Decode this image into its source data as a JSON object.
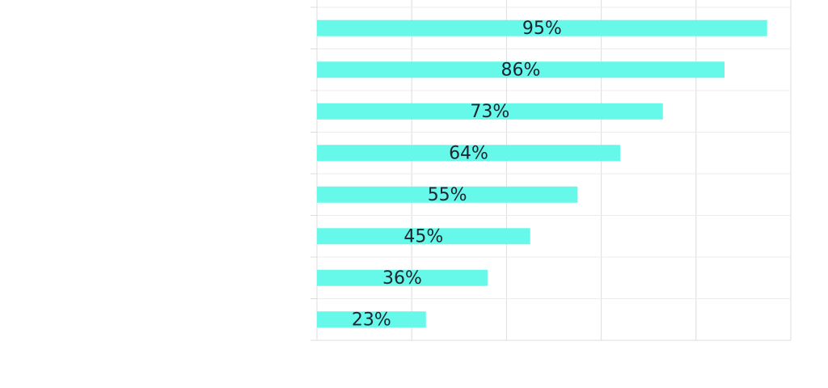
{
  "chart_data": {
    "type": "bar",
    "orientation": "horizontal",
    "categories": [
      null,
      null,
      null,
      null,
      null,
      null,
      null,
      null
    ],
    "values": [
      95,
      86,
      73,
      64,
      55,
      45,
      36,
      23
    ],
    "value_labels": [
      "95%",
      "86%",
      "73%",
      "64%",
      "55%",
      "45%",
      "36%",
      "23%"
    ],
    "color": "#66f8e8",
    "xlim": [
      0,
      100
    ],
    "xticks": [
      0,
      20,
      40,
      60,
      80,
      100
    ],
    "grid": true
  }
}
